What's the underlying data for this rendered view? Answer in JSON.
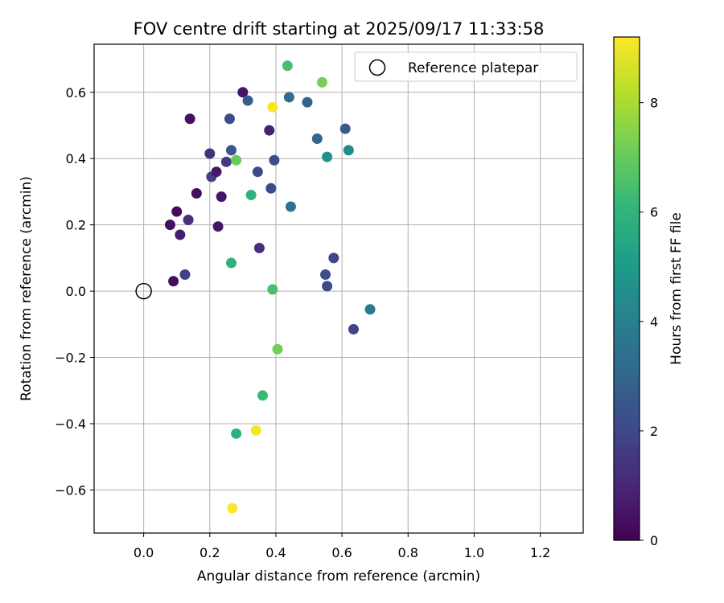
{
  "chart_data": {
    "type": "scatter",
    "title": "FOV centre drift starting at 2025/09/17 11:33:58",
    "xlabel": "Angular distance from reference (arcmin)",
    "ylabel": "Rotation from reference (arcmin)",
    "xlim": [
      -0.15,
      1.33
    ],
    "ylim": [
      -0.73,
      0.745
    ],
    "x_ticks": [
      0.0,
      0.2,
      0.4,
      0.6,
      0.8,
      1.0,
      1.2
    ],
    "x_tick_labels": [
      "0.0",
      "0.2",
      "0.4",
      "0.6",
      "0.8",
      "1.0",
      "1.2"
    ],
    "y_ticks": [
      -0.6,
      -0.4,
      -0.2,
      0.0,
      0.2,
      0.4,
      0.6
    ],
    "y_tick_labels": [
      "−0.6",
      "−0.4",
      "−0.2",
      "0.0",
      "0.2",
      "0.4",
      "0.6"
    ],
    "grid": true,
    "legend": {
      "placement": "top-right",
      "entries": [
        "Reference platepar"
      ]
    },
    "reference": {
      "x": 0.0,
      "y": 0.0
    },
    "colorbar": {
      "label": "Hours from first FF file",
      "range": [
        0,
        9.2
      ],
      "ticks": [
        0,
        2,
        4,
        6,
        8
      ],
      "tick_labels": [
        "0",
        "2",
        "4",
        "6",
        "8"
      ],
      "colormap": "viridis"
    },
    "points": [
      {
        "x": 0.09,
        "y": 0.03,
        "hours": 0.3
      },
      {
        "x": 0.08,
        "y": 0.2,
        "hours": 0.4
      },
      {
        "x": 0.1,
        "y": 0.24,
        "hours": 0.2
      },
      {
        "x": 0.11,
        "y": 0.17,
        "hours": 0.7
      },
      {
        "x": 0.14,
        "y": 0.52,
        "hours": 0.4
      },
      {
        "x": 0.16,
        "y": 0.295,
        "hours": 0.3
      },
      {
        "x": 0.135,
        "y": 0.215,
        "hours": 1.3
      },
      {
        "x": 0.125,
        "y": 0.05,
        "hours": 1.8
      },
      {
        "x": 0.2,
        "y": 0.415,
        "hours": 1.3
      },
      {
        "x": 0.205,
        "y": 0.345,
        "hours": 1.8
      },
      {
        "x": 0.22,
        "y": 0.36,
        "hours": 0.6
      },
      {
        "x": 0.225,
        "y": 0.195,
        "hours": 0.5
      },
      {
        "x": 0.235,
        "y": 0.285,
        "hours": 0.5
      },
      {
        "x": 0.25,
        "y": 0.39,
        "hours": 1.6
      },
      {
        "x": 0.26,
        "y": 0.52,
        "hours": 2.1
      },
      {
        "x": 0.265,
        "y": 0.425,
        "hours": 2.5
      },
      {
        "x": 0.28,
        "y": 0.395,
        "hours": 7.0
      },
      {
        "x": 0.3,
        "y": 0.6,
        "hours": 0.5
      },
      {
        "x": 0.315,
        "y": 0.575,
        "hours": 2.7
      },
      {
        "x": 0.325,
        "y": 0.29,
        "hours": 5.9
      },
      {
        "x": 0.345,
        "y": 0.36,
        "hours": 2.0
      },
      {
        "x": 0.35,
        "y": 0.13,
        "hours": 1.2
      },
      {
        "x": 0.38,
        "y": 0.485,
        "hours": 0.8
      },
      {
        "x": 0.385,
        "y": 0.31,
        "hours": 2.1
      },
      {
        "x": 0.39,
        "y": 0.555,
        "hours": 9.1
      },
      {
        "x": 0.395,
        "y": 0.395,
        "hours": 2.1
      },
      {
        "x": 0.435,
        "y": 0.68,
        "hours": 6.5
      },
      {
        "x": 0.44,
        "y": 0.585,
        "hours": 3.2
      },
      {
        "x": 0.445,
        "y": 0.255,
        "hours": 3.5
      },
      {
        "x": 0.495,
        "y": 0.57,
        "hours": 2.9
      },
      {
        "x": 0.525,
        "y": 0.46,
        "hours": 3.0
      },
      {
        "x": 0.54,
        "y": 0.63,
        "hours": 7.3
      },
      {
        "x": 0.55,
        "y": 0.05,
        "hours": 2.2
      },
      {
        "x": 0.555,
        "y": 0.015,
        "hours": 2.0
      },
      {
        "x": 0.555,
        "y": 0.405,
        "hours": 4.6
      },
      {
        "x": 0.575,
        "y": 0.1,
        "hours": 2.0
      },
      {
        "x": 0.61,
        "y": 0.49,
        "hours": 2.6
      },
      {
        "x": 0.62,
        "y": 0.425,
        "hours": 4.4
      },
      {
        "x": 0.635,
        "y": -0.115,
        "hours": 1.9
      },
      {
        "x": 0.685,
        "y": -0.055,
        "hours": 3.8
      },
      {
        "x": 0.265,
        "y": 0.085,
        "hours": 5.9
      },
      {
        "x": 0.39,
        "y": 0.005,
        "hours": 6.5
      },
      {
        "x": 0.405,
        "y": -0.175,
        "hours": 7.2
      },
      {
        "x": 0.36,
        "y": -0.315,
        "hours": 6.2
      },
      {
        "x": 0.28,
        "y": -0.43,
        "hours": 5.8
      },
      {
        "x": 0.34,
        "y": -0.42,
        "hours": 9.1
      },
      {
        "x": 0.268,
        "y": -0.655,
        "hours": 9.2
      }
    ]
  }
}
